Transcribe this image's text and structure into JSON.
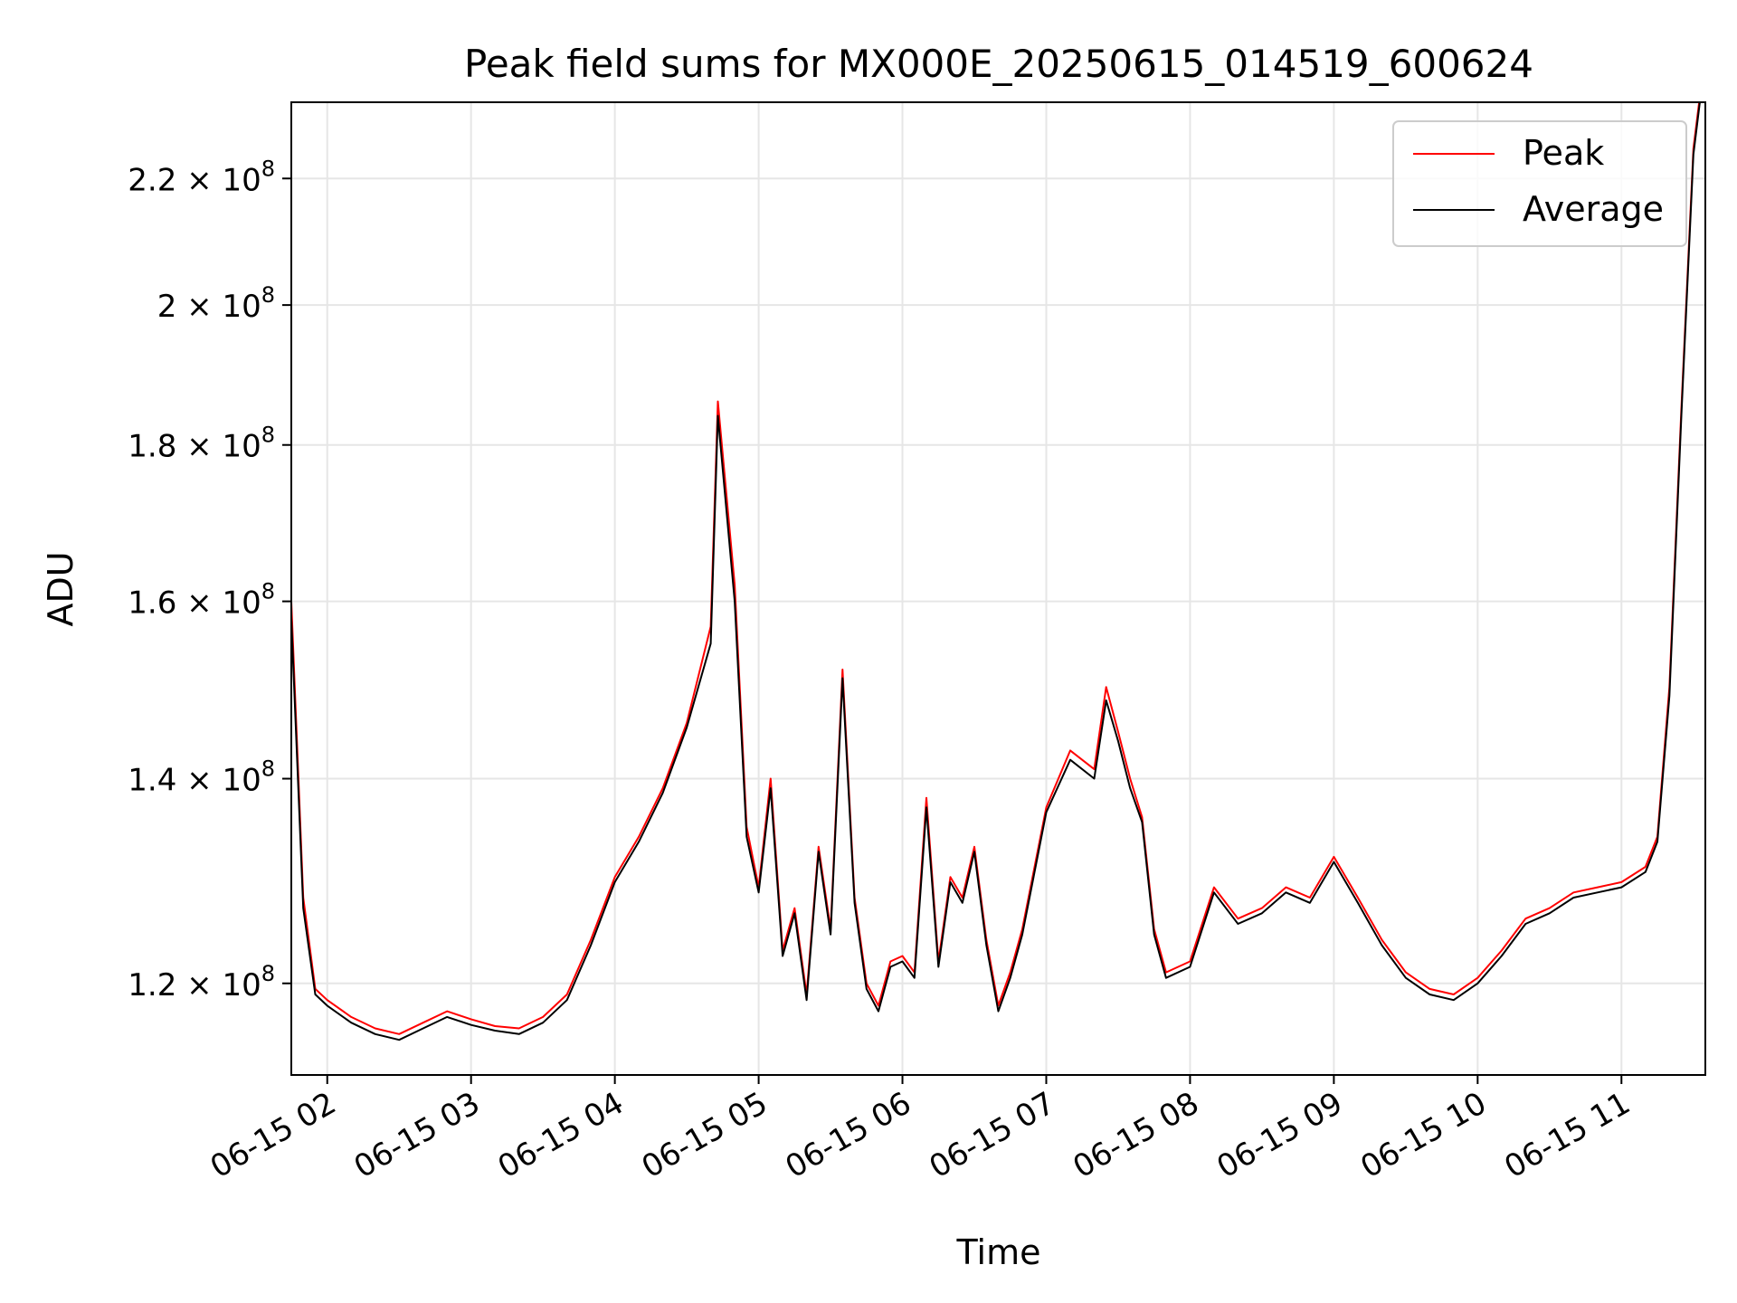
{
  "chart_data": {
    "type": "line",
    "title": "Peak field sums for MX000E_20250615_014519_600624",
    "xlabel": "Time",
    "ylabel": "ADU",
    "yscale": "log",
    "ylim": [
      112000000,
      233000000
    ],
    "xlim": [
      "2025-06-15 01:45",
      "2025-06-15 11:35"
    ],
    "grid": true,
    "legend_position": "top-right",
    "x_ticks": [
      {
        "x": "2025-06-15 02:00",
        "label": "06-15 02"
      },
      {
        "x": "2025-06-15 03:00",
        "label": "06-15 03"
      },
      {
        "x": "2025-06-15 04:00",
        "label": "06-15 04"
      },
      {
        "x": "2025-06-15 05:00",
        "label": "06-15 05"
      },
      {
        "x": "2025-06-15 06:00",
        "label": "06-15 06"
      },
      {
        "x": "2025-06-15 07:00",
        "label": "06-15 07"
      },
      {
        "x": "2025-06-15 08:00",
        "label": "06-15 08"
      },
      {
        "x": "2025-06-15 09:00",
        "label": "06-15 09"
      },
      {
        "x": "2025-06-15 10:00",
        "label": "06-15 10"
      },
      {
        "x": "2025-06-15 11:00",
        "label": "06-15 11"
      }
    ],
    "y_ticks": [
      {
        "value": 120000000,
        "mantissa": "1.2",
        "exp": "8"
      },
      {
        "value": 140000000,
        "mantissa": "1.4",
        "exp": "8"
      },
      {
        "value": 160000000,
        "mantissa": "1.6",
        "exp": "8"
      },
      {
        "value": 180000000,
        "mantissa": "1.8",
        "exp": "8"
      },
      {
        "value": 200000000,
        "mantissa": "2",
        "exp": "8"
      },
      {
        "value": 220000000,
        "mantissa": "2.2",
        "exp": "8"
      }
    ],
    "series": [
      {
        "name": "Peak",
        "color": "#ff0000",
        "x": [
          "2025-06-15 01:45",
          "2025-06-15 01:50",
          "2025-06-15 01:55",
          "2025-06-15 02:00",
          "2025-06-15 02:10",
          "2025-06-15 02:20",
          "2025-06-15 02:30",
          "2025-06-15 02:40",
          "2025-06-15 02:50",
          "2025-06-15 03:00",
          "2025-06-15 03:10",
          "2025-06-15 03:20",
          "2025-06-15 03:30",
          "2025-06-15 03:40",
          "2025-06-15 03:50",
          "2025-06-15 04:00",
          "2025-06-15 04:10",
          "2025-06-15 04:20",
          "2025-06-15 04:30",
          "2025-06-15 04:40",
          "2025-06-15 04:43",
          "2025-06-15 04:50",
          "2025-06-15 04:55",
          "2025-06-15 05:00",
          "2025-06-15 05:05",
          "2025-06-15 05:10",
          "2025-06-15 05:15",
          "2025-06-15 05:20",
          "2025-06-15 05:25",
          "2025-06-15 05:30",
          "2025-06-15 05:35",
          "2025-06-15 05:40",
          "2025-06-15 05:45",
          "2025-06-15 05:50",
          "2025-06-15 05:55",
          "2025-06-15 06:00",
          "2025-06-15 06:05",
          "2025-06-15 06:10",
          "2025-06-15 06:15",
          "2025-06-15 06:20",
          "2025-06-15 06:25",
          "2025-06-15 06:30",
          "2025-06-15 06:35",
          "2025-06-15 06:40",
          "2025-06-15 06:45",
          "2025-06-15 06:50",
          "2025-06-15 07:00",
          "2025-06-15 07:10",
          "2025-06-15 07:20",
          "2025-06-15 07:25",
          "2025-06-15 07:30",
          "2025-06-15 07:35",
          "2025-06-15 07:40",
          "2025-06-15 07:45",
          "2025-06-15 07:50",
          "2025-06-15 08:00",
          "2025-06-15 08:10",
          "2025-06-15 08:20",
          "2025-06-15 08:30",
          "2025-06-15 08:40",
          "2025-06-15 08:50",
          "2025-06-15 09:00",
          "2025-06-15 09:10",
          "2025-06-15 09:20",
          "2025-06-15 09:30",
          "2025-06-15 09:40",
          "2025-06-15 09:50",
          "2025-06-15 10:00",
          "2025-06-15 10:10",
          "2025-06-15 10:20",
          "2025-06-15 10:30",
          "2025-06-15 10:40",
          "2025-06-15 10:50",
          "2025-06-15 11:00",
          "2025-06-15 11:10",
          "2025-06-15 11:15",
          "2025-06-15 11:20",
          "2025-06-15 11:25",
          "2025-06-15 11:30",
          "2025-06-15 11:33"
        ],
        "y": [
          160000000,
          128000000,
          119500000,
          118500000,
          117000000,
          116000000,
          115500000,
          116500000,
          117500000,
          116800000,
          116200000,
          116000000,
          117000000,
          119000000,
          124000000,
          130000000,
          134000000,
          139000000,
          146000000,
          157000000,
          186000000,
          162000000,
          135000000,
          129000000,
          140000000,
          123000000,
          127000000,
          119000000,
          133000000,
          125000000,
          152000000,
          128000000,
          120000000,
          118000000,
          122000000,
          122500000,
          121000000,
          138000000,
          122000000,
          130000000,
          128000000,
          133000000,
          124000000,
          118000000,
          121000000,
          125000000,
          137000000,
          143000000,
          141000000,
          150000000,
          145000000,
          140000000,
          136000000,
          125000000,
          121000000,
          122000000,
          129000000,
          126000000,
          127000000,
          129000000,
          128000000,
          132000000,
          128000000,
          124000000,
          121000000,
          119500000,
          119000000,
          120500000,
          123000000,
          126000000,
          127000000,
          128500000,
          129000000,
          129500000,
          131000000,
          134000000,
          150000000,
          185000000,
          225000000,
          235000000
        ]
      },
      {
        "name": "Average",
        "color": "#000000",
        "x": [
          "2025-06-15 01:45",
          "2025-06-15 01:50",
          "2025-06-15 01:55",
          "2025-06-15 02:00",
          "2025-06-15 02:10",
          "2025-06-15 02:20",
          "2025-06-15 02:30",
          "2025-06-15 02:40",
          "2025-06-15 02:50",
          "2025-06-15 03:00",
          "2025-06-15 03:10",
          "2025-06-15 03:20",
          "2025-06-15 03:30",
          "2025-06-15 03:40",
          "2025-06-15 03:50",
          "2025-06-15 04:00",
          "2025-06-15 04:10",
          "2025-06-15 04:20",
          "2025-06-15 04:30",
          "2025-06-15 04:40",
          "2025-06-15 04:43",
          "2025-06-15 04:50",
          "2025-06-15 04:55",
          "2025-06-15 05:00",
          "2025-06-15 05:05",
          "2025-06-15 05:10",
          "2025-06-15 05:15",
          "2025-06-15 05:20",
          "2025-06-15 05:25",
          "2025-06-15 05:30",
          "2025-06-15 05:35",
          "2025-06-15 05:40",
          "2025-06-15 05:45",
          "2025-06-15 05:50",
          "2025-06-15 05:55",
          "2025-06-15 06:00",
          "2025-06-15 06:05",
          "2025-06-15 06:10",
          "2025-06-15 06:15",
          "2025-06-15 06:20",
          "2025-06-15 06:25",
          "2025-06-15 06:30",
          "2025-06-15 06:35",
          "2025-06-15 06:40",
          "2025-06-15 06:45",
          "2025-06-15 06:50",
          "2025-06-15 07:00",
          "2025-06-15 07:10",
          "2025-06-15 07:20",
          "2025-06-15 07:25",
          "2025-06-15 07:30",
          "2025-06-15 07:35",
          "2025-06-15 07:40",
          "2025-06-15 07:45",
          "2025-06-15 07:50",
          "2025-06-15 08:00",
          "2025-06-15 08:10",
          "2025-06-15 08:20",
          "2025-06-15 08:30",
          "2025-06-15 08:40",
          "2025-06-15 08:50",
          "2025-06-15 09:00",
          "2025-06-15 09:10",
          "2025-06-15 09:20",
          "2025-06-15 09:30",
          "2025-06-15 09:40",
          "2025-06-15 09:50",
          "2025-06-15 10:00",
          "2025-06-15 10:10",
          "2025-06-15 10:20",
          "2025-06-15 10:30",
          "2025-06-15 10:40",
          "2025-06-15 10:50",
          "2025-06-15 11:00",
          "2025-06-15 11:10",
          "2025-06-15 11:15",
          "2025-06-15 11:20",
          "2025-06-15 11:25",
          "2025-06-15 11:30",
          "2025-06-15 11:33"
        ],
        "y": [
          158000000,
          127000000,
          119000000,
          118000000,
          116500000,
          115500000,
          115000000,
          116000000,
          117000000,
          116300000,
          115800000,
          115500000,
          116500000,
          118500000,
          123500000,
          129500000,
          133500000,
          138500000,
          145500000,
          155000000,
          184000000,
          160000000,
          134000000,
          128500000,
          139000000,
          122500000,
          126500000,
          118500000,
          132500000,
          124500000,
          151000000,
          127500000,
          119500000,
          117500000,
          121500000,
          122000000,
          120500000,
          137000000,
          121500000,
          129500000,
          127500000,
          132500000,
          123500000,
          117500000,
          120500000,
          124500000,
          136500000,
          142000000,
          140000000,
          148500000,
          144000000,
          139000000,
          135500000,
          124500000,
          120500000,
          121500000,
          128500000,
          125500000,
          126500000,
          128500000,
          127500000,
          131500000,
          127500000,
          123500000,
          120500000,
          119000000,
          118500000,
          120000000,
          122500000,
          125500000,
          126500000,
          128000000,
          128500000,
          129000000,
          130500000,
          133500000,
          149000000,
          184000000,
          224000000,
          234000000
        ]
      }
    ]
  }
}
